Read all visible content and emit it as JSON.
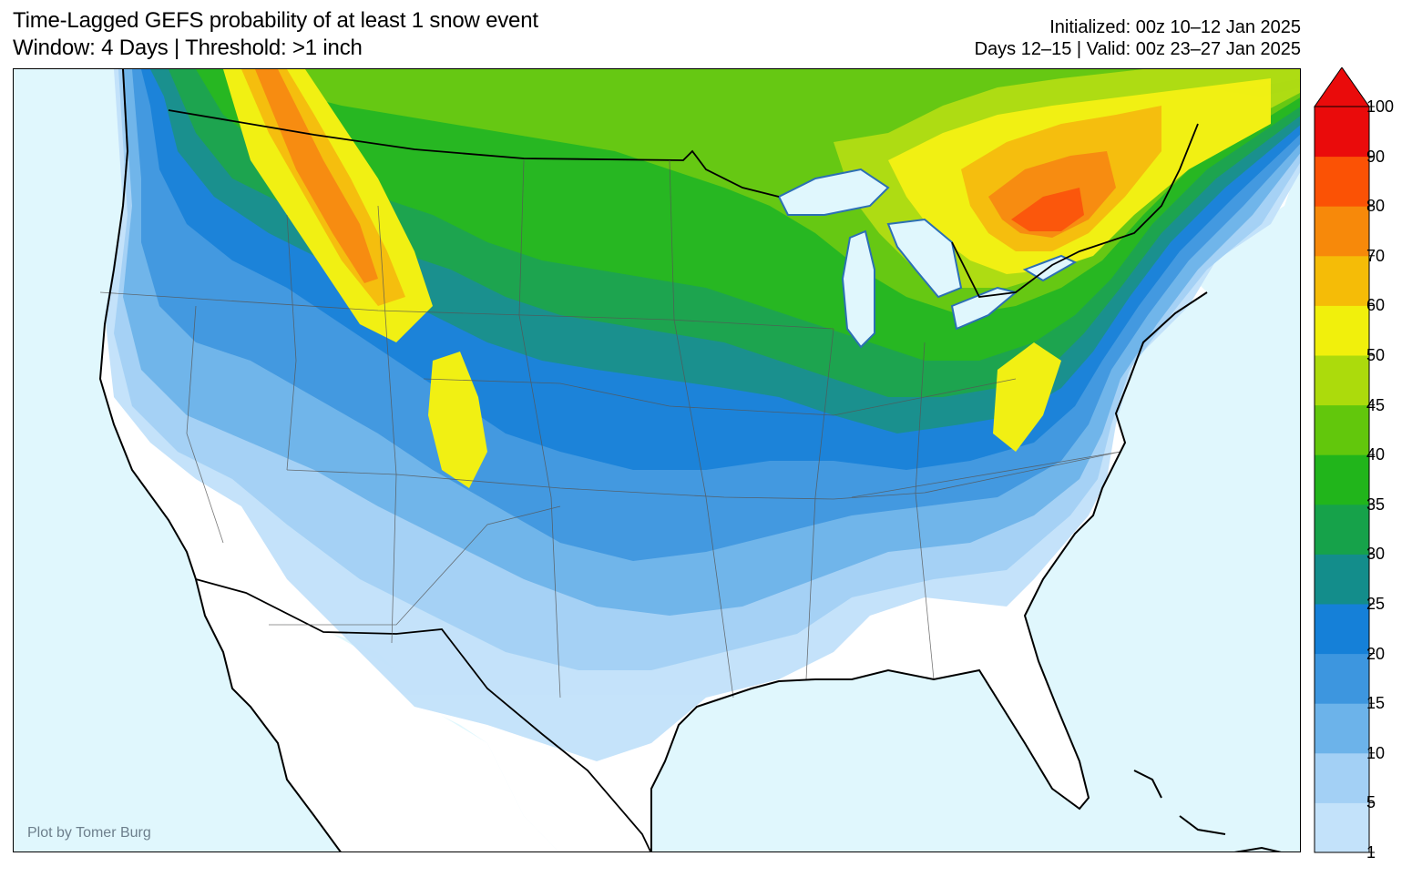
{
  "title": {
    "line1": "Time-Lagged GEFS probability of at least 1 snow event",
    "line2": "Window: 4 Days | Threshold: >1 inch"
  },
  "meta": {
    "initialized": "Initialized: 00z 10–12 Jan 2025",
    "valid": "Days 12–15 | Valid: 00z 23–27 Jan 2025"
  },
  "credit": "Plot by Tomer Burg",
  "colorbar": {
    "levels": [
      "1",
      "5",
      "10",
      "15",
      "20",
      "25",
      "30",
      "35",
      "40",
      "45",
      "50",
      "60",
      "70",
      "80",
      "90",
      "100"
    ],
    "colors": [
      "#c3e2fa",
      "#a3d0f5",
      "#6cb3ea",
      "#3d96df",
      "#1580d8",
      "#138d8b",
      "#16a24a",
      "#21b51b",
      "#62c70c",
      "#acdb0c",
      "#f1f00c",
      "#f5bc07",
      "#f7890a",
      "#fb5205",
      "#ea0b0b"
    ]
  },
  "map": {
    "ocean_color": "#e0f7fd",
    "land_color": "#ffffff"
  }
}
